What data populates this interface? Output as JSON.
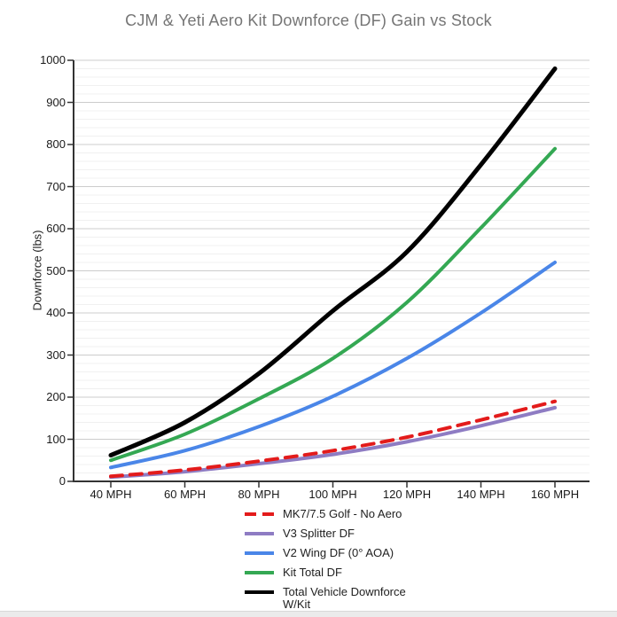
{
  "title": "CJM & Yeti Aero Kit Downforce (DF) Gain vs Stock",
  "y_axis": {
    "title": "Downforce (lbs)",
    "tick_labels": [
      "0",
      "100",
      "200",
      "300",
      "400",
      "500",
      "600",
      "700",
      "800",
      "900",
      "1000"
    ]
  },
  "x_axis": {
    "tick_labels": [
      "40 MPH",
      "60 MPH",
      "80 MPH",
      "100 MPH",
      "120 MPH",
      "140 MPH",
      "160 MPH"
    ]
  },
  "chart_data": {
    "type": "line",
    "x": [
      40,
      60,
      80,
      100,
      120,
      140,
      160
    ],
    "x_unit": "MPH",
    "ylabel": "Downforce (lbs)",
    "ylim": [
      0,
      1000
    ],
    "y_major_step": 100,
    "y_minor_step": 20,
    "grid": "horizontal-only",
    "legend_position": "bottom",
    "line_style": "smooth",
    "series": [
      {
        "name": "MK7/7.5 Golf - No Aero",
        "color": "#E31B1B",
        "dashed": true,
        "width": 4,
        "values": [
          12,
          27,
          48,
          73,
          105,
          146,
          190
        ]
      },
      {
        "name": "V3 Splitter DF",
        "color": "#8E7CC3",
        "dashed": false,
        "width": 4,
        "values": [
          10,
          23,
          42,
          64,
          94,
          132,
          175
        ]
      },
      {
        "name": "V2 Wing DF (0° AOA)",
        "color": "#4A86E8",
        "dashed": false,
        "width": 4,
        "values": [
          33,
          73,
          130,
          202,
          292,
          400,
          520
        ]
      },
      {
        "name": "Kit Total DF",
        "color": "#34A853",
        "dashed": false,
        "width": 4,
        "values": [
          50,
          112,
          196,
          292,
          425,
          602,
          790
        ]
      },
      {
        "name": "Total Vehicle Downforce\nW/Kit",
        "color": "#000000",
        "dashed": false,
        "width": 5,
        "values": [
          62,
          140,
          256,
          405,
          545,
          752,
          980
        ]
      }
    ],
    "colors": {
      "title_text": "#757575",
      "axis_text": "#1a1a1a",
      "axis_line": "#333333",
      "grid_major": "#CCCCCC",
      "grid_minor": "#F0F0F0",
      "bottom_bar": "#EBEBEB"
    }
  }
}
